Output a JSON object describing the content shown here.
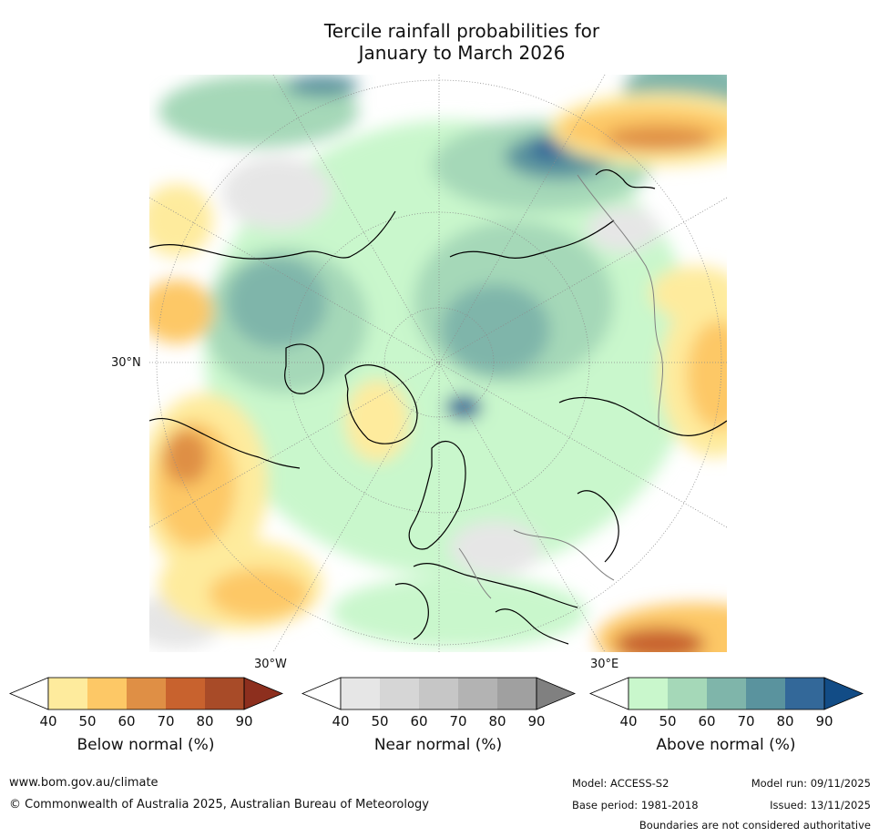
{
  "title": {
    "line1": "Tercile rainfall probabilities for",
    "line2": "January to March 2026"
  },
  "map": {
    "projection": "north-polar-stereographic",
    "lat_label": "30°N",
    "lon_labels": {
      "west": "30°W",
      "east": "30°E"
    },
    "colors": {
      "land_outline": "#000000",
      "border": "#808080",
      "graticule": "#8c8c8c"
    }
  },
  "colorbars": [
    {
      "id": "below",
      "title": "Below normal (%)",
      "ticks": [
        "40",
        "50",
        "60",
        "70",
        "80",
        "90"
      ],
      "colors": [
        "#ffffff",
        "#feeb9d",
        "#fdc866",
        "#df8f45",
        "#c8622e",
        "#a84b28",
        "#8d2f1e"
      ]
    },
    {
      "id": "near",
      "title": "Near normal (%)",
      "ticks": [
        "40",
        "50",
        "60",
        "70",
        "80",
        "90"
      ],
      "colors": [
        "#ffffff",
        "#e6e6e6",
        "#d6d6d6",
        "#c6c6c6",
        "#b3b3b3",
        "#a0a0a0",
        "#808080"
      ]
    },
    {
      "id": "above",
      "title": "Above normal (%)",
      "ticks": [
        "40",
        "50",
        "60",
        "70",
        "80",
        "90"
      ],
      "colors": [
        "#ffffff",
        "#c9f7cc",
        "#a5d8b8",
        "#7fb5aa",
        "#5a939e",
        "#336899",
        "#124c86"
      ]
    }
  ],
  "footer": {
    "website": "www.bom.gov.au/climate",
    "copyright": "© Commonwealth of Australia 2025, Australian Bureau of Meteorology",
    "model": "Model: ACCESS-S2",
    "base_period": "Base period: 1981-2018",
    "model_run": "Model run: 09/11/2025",
    "issued": "Issued: 13/11/2025",
    "disclaimer": "Boundaries are not considered authoritative"
  }
}
